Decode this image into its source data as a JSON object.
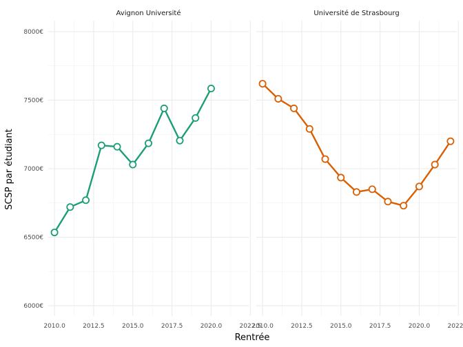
{
  "chart_data": {
    "type": "line",
    "xlabel": "Rentrée",
    "ylabel": "SCSP par étudiant",
    "xlim": [
      2009.6,
      2022.4
    ],
    "ylim": [
      5925,
      8080
    ],
    "x_ticks": [
      2010.0,
      2012.5,
      2015.0,
      2017.5,
      2020.0,
      2022.5
    ],
    "x_tick_labels": [
      "2010.0",
      "2012.5",
      "2015.0",
      "2017.5",
      "2020.0",
      "2022.5"
    ],
    "y_ticks": [
      6000,
      6500,
      7000,
      7500,
      8000
    ],
    "y_tick_labels": [
      "6000€",
      "6500€",
      "7000€",
      "7500€",
      "8000€"
    ],
    "grid": true,
    "facets": [
      {
        "name": "Avignon Université",
        "color": "#1b9e77",
        "x": [
          2010,
          2011,
          2012,
          2013,
          2014,
          2015,
          2016,
          2017,
          2018,
          2019,
          2020
        ],
        "y": [
          6535,
          6720,
          6770,
          7170,
          7160,
          7030,
          7185,
          7440,
          7205,
          7370,
          7585
        ]
      },
      {
        "name": "Université de Strasbourg",
        "color": "#d95f02",
        "x": [
          2010,
          2011,
          2012,
          2013,
          2014,
          2015,
          2016,
          2017,
          2018,
          2019,
          2020,
          2021,
          2022
        ],
        "y": [
          7620,
          7510,
          7440,
          7290,
          7070,
          6935,
          6830,
          6850,
          6760,
          6730,
          6870,
          7030,
          7200
        ]
      }
    ]
  }
}
